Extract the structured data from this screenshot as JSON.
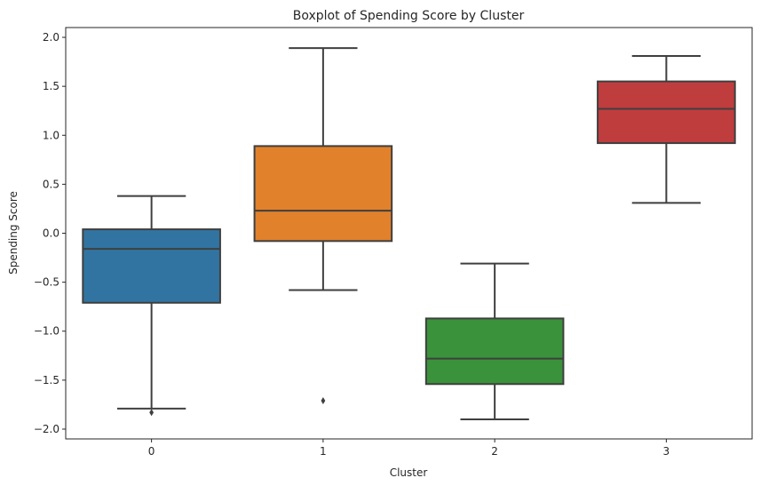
{
  "chart_data": {
    "type": "boxplot",
    "title": "Boxplot of Spending Score by Cluster",
    "xlabel": "Cluster",
    "ylabel": "Spending Score",
    "categories": [
      "0",
      "1",
      "2",
      "3"
    ],
    "ylim": [
      -2.1,
      2.1
    ],
    "yticks": [
      -2.0,
      -1.5,
      -1.0,
      -0.5,
      0.0,
      0.5,
      1.0,
      1.5,
      2.0
    ],
    "ytick_labels": [
      "−2.0",
      "−1.5",
      "−1.0",
      "−0.5",
      "0.0",
      "0.5",
      "1.0",
      "1.5",
      "2.0"
    ],
    "grid": false,
    "boxes": [
      {
        "category": "0",
        "whisker_low": -1.79,
        "q1": -0.71,
        "median": -0.16,
        "q3": 0.04,
        "whisker_high": 0.38,
        "outliers": [
          -1.83
        ],
        "color": "#3274a1"
      },
      {
        "category": "1",
        "whisker_low": -0.58,
        "q1": -0.08,
        "median": 0.23,
        "q3": 0.89,
        "whisker_high": 1.89,
        "outliers": [
          -1.71
        ],
        "color": "#e1812c"
      },
      {
        "category": "2",
        "whisker_low": -1.9,
        "q1": -1.54,
        "median": -1.28,
        "q3": -0.87,
        "whisker_high": -0.31,
        "outliers": [],
        "color": "#3a923a"
      },
      {
        "category": "3",
        "whisker_low": 0.31,
        "q1": 0.92,
        "median": 1.27,
        "q3": 1.55,
        "whisker_high": 1.81,
        "outliers": [],
        "color": "#c03d3e"
      }
    ]
  }
}
